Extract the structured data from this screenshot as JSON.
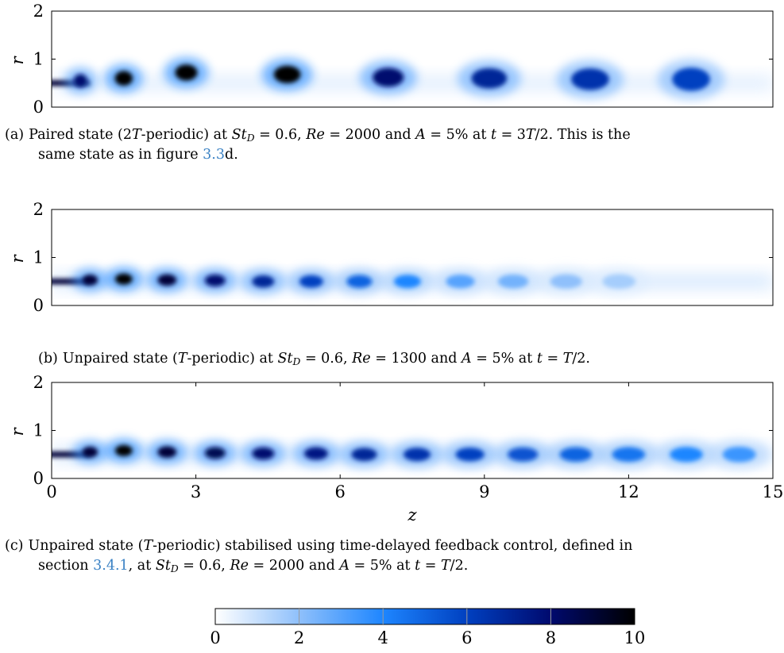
{
  "chart_data": [
    {
      "panel": "a",
      "type": "heatmap",
      "xlim": [
        0,
        15
      ],
      "ylim": [
        0,
        2
      ],
      "ylabel": "r",
      "y_ticks": [
        0,
        1,
        2
      ],
      "x_ticks_shown": false,
      "blobs": [
        {
          "z": 0.6,
          "r": 0.55,
          "level": 8
        },
        {
          "z": 1.5,
          "r": 0.6,
          "level": 10
        },
        {
          "z": 2.8,
          "r": 0.72,
          "level": 10
        },
        {
          "z": 4.9,
          "r": 0.68,
          "level": 10
        },
        {
          "z": 7.0,
          "r": 0.62,
          "level": 8
        },
        {
          "z": 9.1,
          "r": 0.6,
          "level": 7
        },
        {
          "z": 11.2,
          "r": 0.58,
          "level": 6.5
        },
        {
          "z": 13.3,
          "r": 0.58,
          "level": 6
        }
      ]
    },
    {
      "panel": "b",
      "type": "heatmap",
      "xlim": [
        0,
        15
      ],
      "ylim": [
        0,
        2
      ],
      "ylabel": "r",
      "y_ticks": [
        0,
        1,
        2
      ],
      "x_ticks_shown": false,
      "blobs": [
        {
          "z": 0.8,
          "r": 0.53,
          "level": 9
        },
        {
          "z": 1.5,
          "r": 0.55,
          "level": 10
        },
        {
          "z": 2.4,
          "r": 0.53,
          "level": 9
        },
        {
          "z": 3.4,
          "r": 0.52,
          "level": 8
        },
        {
          "z": 4.4,
          "r": 0.5,
          "level": 7
        },
        {
          "z": 5.4,
          "r": 0.5,
          "level": 6
        },
        {
          "z": 6.4,
          "r": 0.5,
          "level": 5
        },
        {
          "z": 7.4,
          "r": 0.5,
          "level": 4
        },
        {
          "z": 8.5,
          "r": 0.5,
          "level": 3
        },
        {
          "z": 9.6,
          "r": 0.5,
          "level": 2.5
        },
        {
          "z": 10.7,
          "r": 0.5,
          "level": 2
        },
        {
          "z": 11.8,
          "r": 0.5,
          "level": 1.6
        }
      ]
    },
    {
      "panel": "c",
      "type": "heatmap",
      "xlim": [
        0,
        15
      ],
      "ylim": [
        0,
        2
      ],
      "xlabel": "z",
      "ylabel": "r",
      "x_ticks": [
        0,
        3,
        6,
        9,
        12,
        15
      ],
      "y_ticks": [
        0,
        1,
        2
      ],
      "blobs": [
        {
          "z": 0.8,
          "r": 0.55,
          "level": 9
        },
        {
          "z": 1.5,
          "r": 0.58,
          "level": 10
        },
        {
          "z": 2.4,
          "r": 0.55,
          "level": 9
        },
        {
          "z": 3.4,
          "r": 0.53,
          "level": 8.5
        },
        {
          "z": 4.4,
          "r": 0.52,
          "level": 8
        },
        {
          "z": 5.5,
          "r": 0.52,
          "level": 7.5
        },
        {
          "z": 6.5,
          "r": 0.5,
          "level": 7
        },
        {
          "z": 7.6,
          "r": 0.5,
          "level": 6.5
        },
        {
          "z": 8.7,
          "r": 0.5,
          "level": 6
        },
        {
          "z": 9.8,
          "r": 0.5,
          "level": 5.5
        },
        {
          "z": 10.9,
          "r": 0.5,
          "level": 5
        },
        {
          "z": 12.0,
          "r": 0.5,
          "level": 4.5
        },
        {
          "z": 13.2,
          "r": 0.5,
          "level": 4
        },
        {
          "z": 14.3,
          "r": 0.5,
          "level": 3.5
        }
      ]
    }
  ],
  "colorbar": {
    "ticks": [
      0,
      2,
      4,
      6,
      8,
      10
    ],
    "min": 0,
    "max": 10,
    "colors": [
      "#ffffff",
      "#8fc0fb",
      "#1e86ff",
      "#0040c0",
      "#000a6e",
      "#000000"
    ]
  },
  "captions": {
    "a_label": "(a)",
    "a_1": "Paired state (2",
    "a_T1": "T",
    "a_2": "-periodic) at ",
    "a_St": "St",
    "a_D": "D",
    "a_3": " = 0.6, ",
    "a_Re": "Re",
    "a_4": " = 2000 and ",
    "a_A": "A",
    "a_5": " = 5% at ",
    "a_t": "t",
    "a_6": " = 3",
    "a_T2": "T",
    "a_7": "/2. This is the",
    "a_8": "same state as in figure ",
    "a_ref": "3.3",
    "a_9": "d.",
    "b_label": "(b)",
    "b_1": "Unpaired state (",
    "b_T1": "T",
    "b_2": "-periodic) at ",
    "b_St": "St",
    "b_D": "D",
    "b_3": " = 0.6, ",
    "b_Re": "Re",
    "b_4": " = 1300 and ",
    "b_A": "A",
    "b_5": " = 5% at ",
    "b_t": "t",
    "b_6": " = ",
    "b_T2": "T",
    "b_7": "/2.",
    "c_label": "(c)",
    "c_1": "Unpaired state (",
    "c_T1": "T",
    "c_2": "-periodic) stabilised using time-delayed feedback control, defined in",
    "c_3": "section ",
    "c_ref": "3.4.1",
    "c_4": ", at ",
    "c_St": "St",
    "c_D": "D",
    "c_5": " = 0.6, ",
    "c_Re": "Re",
    "c_6": " = 2000 and ",
    "c_A": "A",
    "c_7": " = 5% at ",
    "c_t": "t",
    "c_8": " = ",
    "c_T2": "T",
    "c_9": "/2."
  }
}
